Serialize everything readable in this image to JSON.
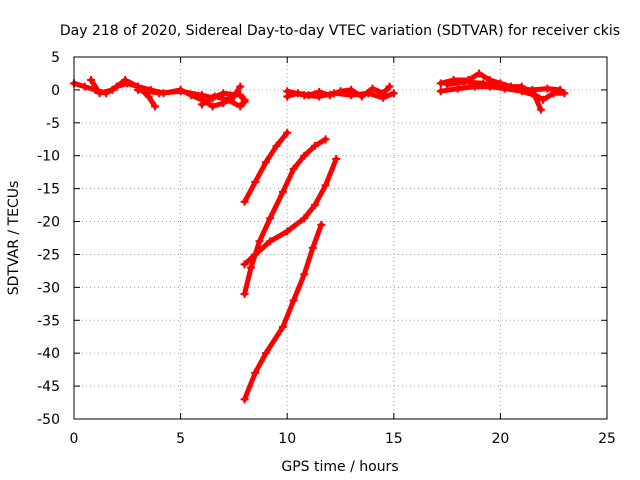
{
  "chart_data": {
    "type": "scatter",
    "title": "Day 218 of 2020, Sidereal Day-to-day VTEC variation (SDTVAR) for receiver ckis",
    "xlabel": "GPS time / hours",
    "ylabel": "SDTVAR / TECUs",
    "xlim": [
      0,
      25
    ],
    "ylim": [
      -50,
      5
    ],
    "xticks": [
      0,
      5,
      10,
      15,
      20,
      25
    ],
    "yticks": [
      5,
      0,
      -5,
      -10,
      -15,
      -20,
      -25,
      -30,
      -35,
      -40,
      -45,
      -50
    ],
    "grid": true,
    "legend": "none",
    "color": "#ff0000",
    "series": [
      {
        "points": [
          [
            0,
            1
          ],
          [
            0.5,
            0.5
          ],
          [
            1,
            0
          ],
          [
            1.5,
            -0.5
          ],
          [
            2,
            0.5
          ],
          [
            2.5,
            1
          ],
          [
            3,
            0.5
          ],
          [
            3.5,
            -1
          ],
          [
            3.8,
            -2.5
          ]
        ]
      },
      {
        "points": [
          [
            0.8,
            1.5
          ],
          [
            1.2,
            -0.5
          ],
          [
            1.8,
            0
          ],
          [
            2.4,
            1.5
          ],
          [
            3,
            0.5
          ],
          [
            3.6,
            0
          ],
          [
            4.2,
            -0.5
          ],
          [
            5,
            0
          ],
          [
            5.5,
            -0.8
          ],
          [
            6,
            -1.5
          ],
          [
            6.5,
            -2.5
          ],
          [
            7,
            -2
          ],
          [
            7.5,
            -1
          ],
          [
            7.8,
            0.5
          ]
        ]
      },
      {
        "points": [
          [
            3,
            0
          ],
          [
            4,
            -0.5
          ],
          [
            5,
            -0.2
          ],
          [
            6,
            -0.8
          ],
          [
            6.5,
            -1.2
          ],
          [
            7,
            -0.5
          ],
          [
            7.8,
            -0.8
          ],
          [
            8,
            -1.5
          ]
        ]
      },
      {
        "points": [
          [
            6,
            -2.2
          ],
          [
            6.6,
            -1
          ],
          [
            7.2,
            -1.5
          ],
          [
            7.8,
            -2.5
          ],
          [
            8,
            -1.8
          ]
        ]
      },
      {
        "points": [
          [
            8,
            -17
          ],
          [
            8.5,
            -14
          ],
          [
            9,
            -11
          ],
          [
            9.5,
            -8.5
          ],
          [
            10,
            -6.5
          ]
        ]
      },
      {
        "points": [
          [
            8,
            -31
          ],
          [
            8.3,
            -27
          ],
          [
            8.7,
            -23
          ],
          [
            9.2,
            -19.5
          ],
          [
            9.8,
            -15.5
          ],
          [
            10.3,
            -12
          ],
          [
            10.8,
            -10
          ],
          [
            11.3,
            -8.5
          ],
          [
            11.8,
            -7.5
          ]
        ]
      },
      {
        "points": [
          [
            8,
            -26.5
          ],
          [
            8.5,
            -25
          ],
          [
            9.2,
            -23
          ],
          [
            10,
            -21.5
          ],
          [
            10.8,
            -19.5
          ],
          [
            11.3,
            -17.5
          ],
          [
            11.8,
            -14.5
          ],
          [
            12.3,
            -10.5
          ]
        ]
      },
      {
        "points": [
          [
            8,
            -47
          ],
          [
            8.5,
            -43
          ],
          [
            9,
            -40
          ],
          [
            9.8,
            -36
          ],
          [
            10.3,
            -32
          ],
          [
            10.8,
            -28
          ],
          [
            11.2,
            -24
          ],
          [
            11.6,
            -20.5
          ]
        ]
      },
      {
        "points": [
          [
            10,
            -1
          ],
          [
            10.5,
            -0.5
          ],
          [
            11,
            -0.8
          ],
          [
            11.5,
            -0.3
          ],
          [
            12,
            -0.8
          ],
          [
            12.5,
            -0.2
          ],
          [
            13,
            0
          ],
          [
            13.5,
            -1
          ],
          [
            14,
            0.2
          ],
          [
            14.5,
            -0.5
          ],
          [
            14.8,
            0.5
          ]
        ]
      },
      {
        "points": [
          [
            10,
            -0.2
          ],
          [
            10.8,
            -0.8
          ],
          [
            11.5,
            -1
          ],
          [
            12.2,
            -0.5
          ],
          [
            13,
            -0.8
          ],
          [
            13.8,
            -0.5
          ],
          [
            14.5,
            -1.2
          ],
          [
            15,
            -0.5
          ]
        ]
      },
      {
        "points": [
          [
            17.2,
            1
          ],
          [
            17.8,
            1.5
          ],
          [
            18.5,
            1.5
          ],
          [
            19,
            2.5
          ],
          [
            19.5,
            1.5
          ],
          [
            20,
            1
          ],
          [
            20.5,
            0.5
          ],
          [
            21,
            0.5
          ],
          [
            21.5,
            -0.5
          ],
          [
            22,
            -1.5
          ],
          [
            22.5,
            -0.5
          ],
          [
            23,
            -0.5
          ]
        ]
      },
      {
        "points": [
          [
            17.2,
            -0.2
          ],
          [
            18,
            0.2
          ],
          [
            18.8,
            0.5
          ],
          [
            19.5,
            0.5
          ],
          [
            20.2,
            0.2
          ],
          [
            21,
            -0.2
          ],
          [
            21.6,
            -0.8
          ],
          [
            21.9,
            -3
          ]
        ]
      },
      {
        "points": [
          [
            17.5,
            0.8
          ],
          [
            18.3,
            1.2
          ],
          [
            19.2,
            1
          ],
          [
            20,
            0.5
          ],
          [
            20.8,
            0.2
          ],
          [
            21.5,
            0
          ],
          [
            22.2,
            0.2
          ],
          [
            22.8,
            0
          ]
        ]
      }
    ]
  }
}
